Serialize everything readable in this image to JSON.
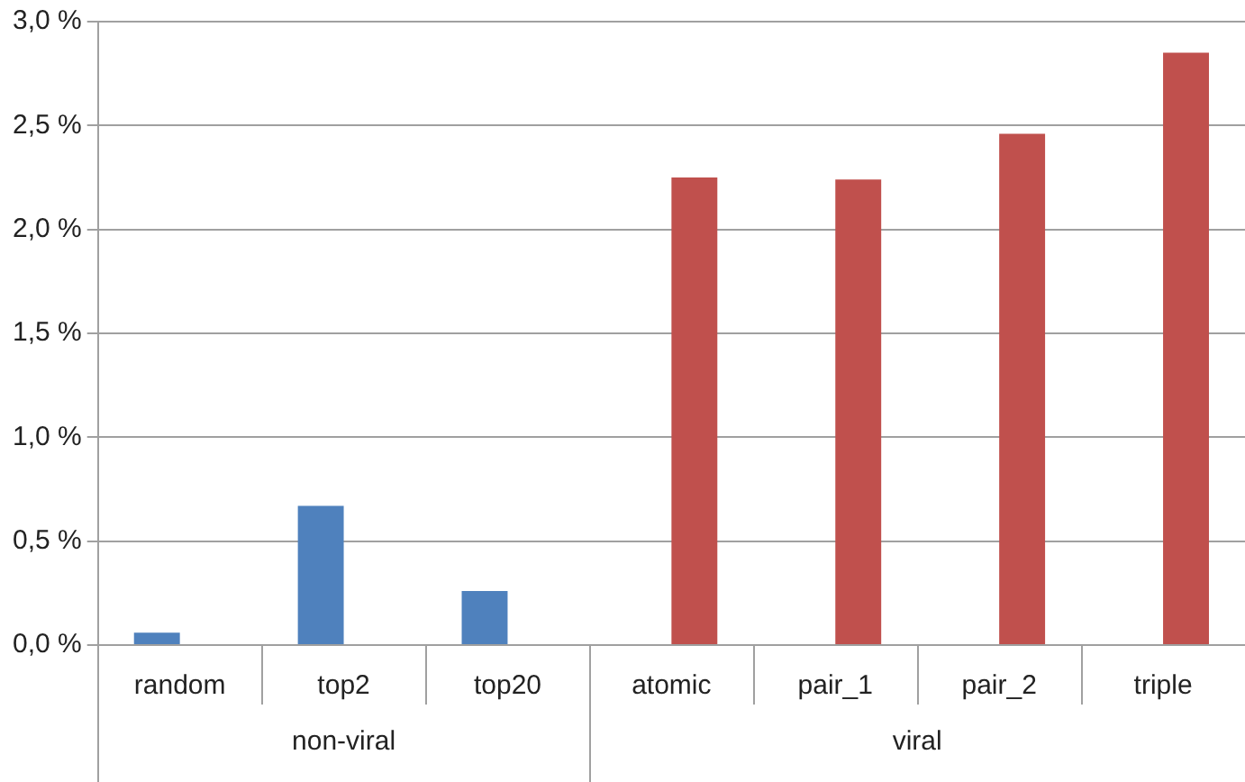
{
  "chart_data": {
    "type": "bar",
    "categories": [
      "random",
      "top2",
      "top20",
      "atomic",
      "pair_1",
      "pair_2",
      "triple"
    ],
    "series": [
      {
        "color": "#4f81bd",
        "values": [
          0.06,
          0.67,
          0.26,
          null,
          null,
          null,
          null
        ]
      },
      {
        "color": "#c0504d",
        "values": [
          null,
          null,
          null,
          2.25,
          2.24,
          2.46,
          2.85
        ]
      }
    ],
    "ylim": [
      0,
      3
    ],
    "yticks": [
      {
        "value": 0,
        "label": "0,0 %"
      },
      {
        "value": 0.5,
        "label": "0,5 %"
      },
      {
        "value": 1,
        "label": "1,0 %"
      },
      {
        "value": 1.5,
        "label": "1,5 %"
      },
      {
        "value": 2,
        "label": "2,0 %"
      },
      {
        "value": 2.5,
        "label": "2,5 %"
      },
      {
        "value": 3,
        "label": "3,0 %"
      }
    ],
    "annotations": [
      "non-viral",
      "viral"
    ],
    "grid": "y",
    "legend": false
  }
}
